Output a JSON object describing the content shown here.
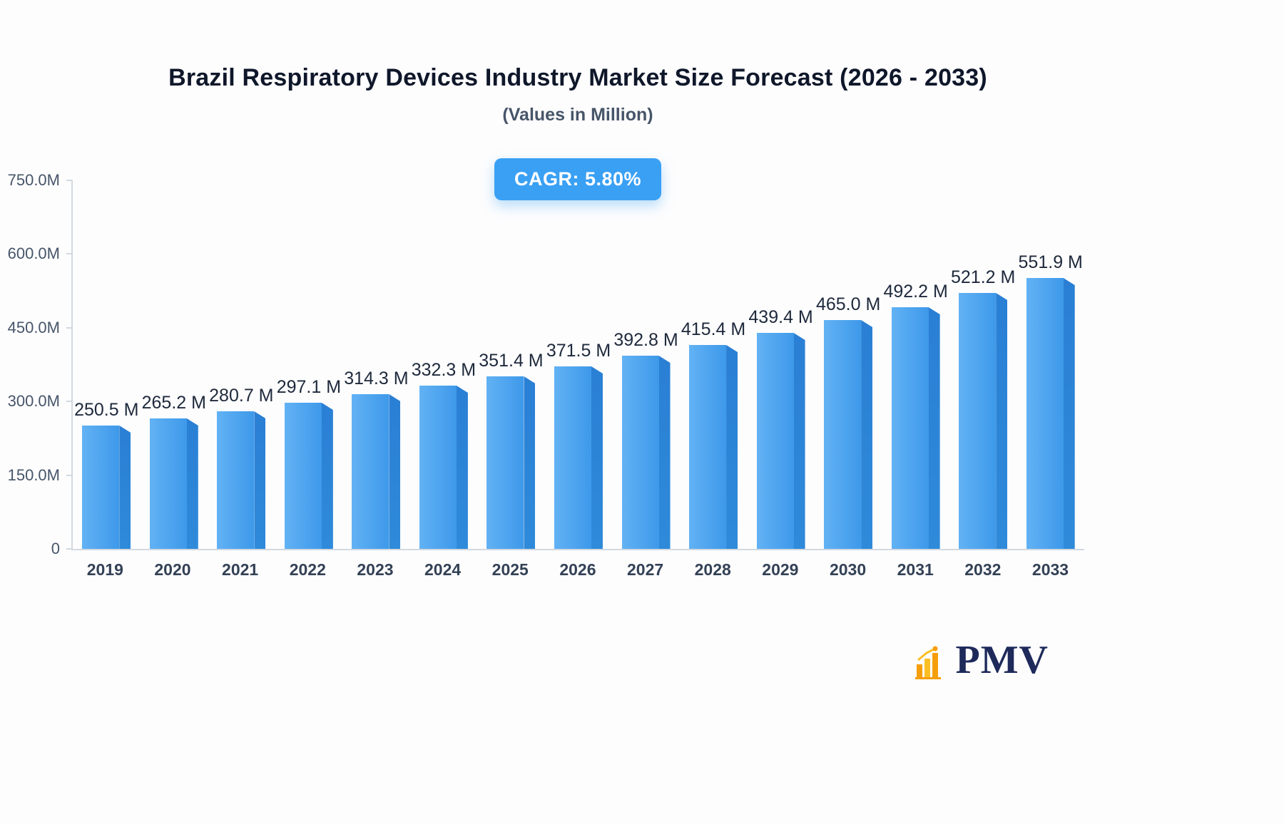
{
  "header": {
    "title": "Brazil Respiratory Devices Industry Market Size Forecast (2026 - 2033)",
    "subtitle": "(Values in Million)",
    "cagr_label": "CAGR: 5.80%"
  },
  "chart_data": {
    "type": "bar",
    "title": "Brazil Respiratory Devices Industry Market Size Forecast (2026 - 2033)",
    "subtitle": "(Values in Million)",
    "categories": [
      "2019",
      "2020",
      "2021",
      "2022",
      "2023",
      "2024",
      "2025",
      "2026",
      "2027",
      "2028",
      "2029",
      "2030",
      "2031",
      "2032",
      "2033"
    ],
    "values": [
      250.5,
      265.2,
      280.7,
      297.1,
      314.3,
      332.3,
      351.4,
      371.5,
      392.8,
      415.4,
      439.4,
      465.0,
      492.2,
      521.2,
      551.9
    ],
    "value_labels": [
      "250.5 M",
      "265.2 M",
      "280.7 M",
      "297.1 M",
      "314.3 M",
      "332.3 M",
      "351.4 M",
      "371.5 M",
      "392.8 M",
      "415.4 M",
      "439.4 M",
      "465.0 M",
      "492.2 M",
      "521.2 M",
      "551.9 M"
    ],
    "unit": "M",
    "xlabel": "",
    "ylabel": "",
    "ylim": [
      0,
      750
    ],
    "yticks": [
      {
        "value": 0,
        "label": "0"
      },
      {
        "value": 150,
        "label": "150.0M"
      },
      {
        "value": 300,
        "label": "300.0M"
      },
      {
        "value": 450,
        "label": "450.0M"
      },
      {
        "value": 600,
        "label": "600.0M"
      },
      {
        "value": 750,
        "label": "750.0M"
      }
    ],
    "grid": false,
    "legend": "none",
    "annotations": [
      "CAGR: 5.80%"
    ]
  },
  "logo": {
    "text": "PMV",
    "icon": "bar-chart-icon"
  },
  "colors": {
    "bar_face_start": "#62b2f4",
    "bar_face_end": "#3e99ea",
    "bar_side": "#2a7fd4",
    "badge_bg": "#3aa0f4",
    "axis": "#d2d9e0",
    "text_dark": "#0f172a",
    "text_muted": "#475569",
    "logo_navy": "#1e2a5a",
    "logo_orange": "#f59e0b",
    "background": "#fdfdfe"
  }
}
